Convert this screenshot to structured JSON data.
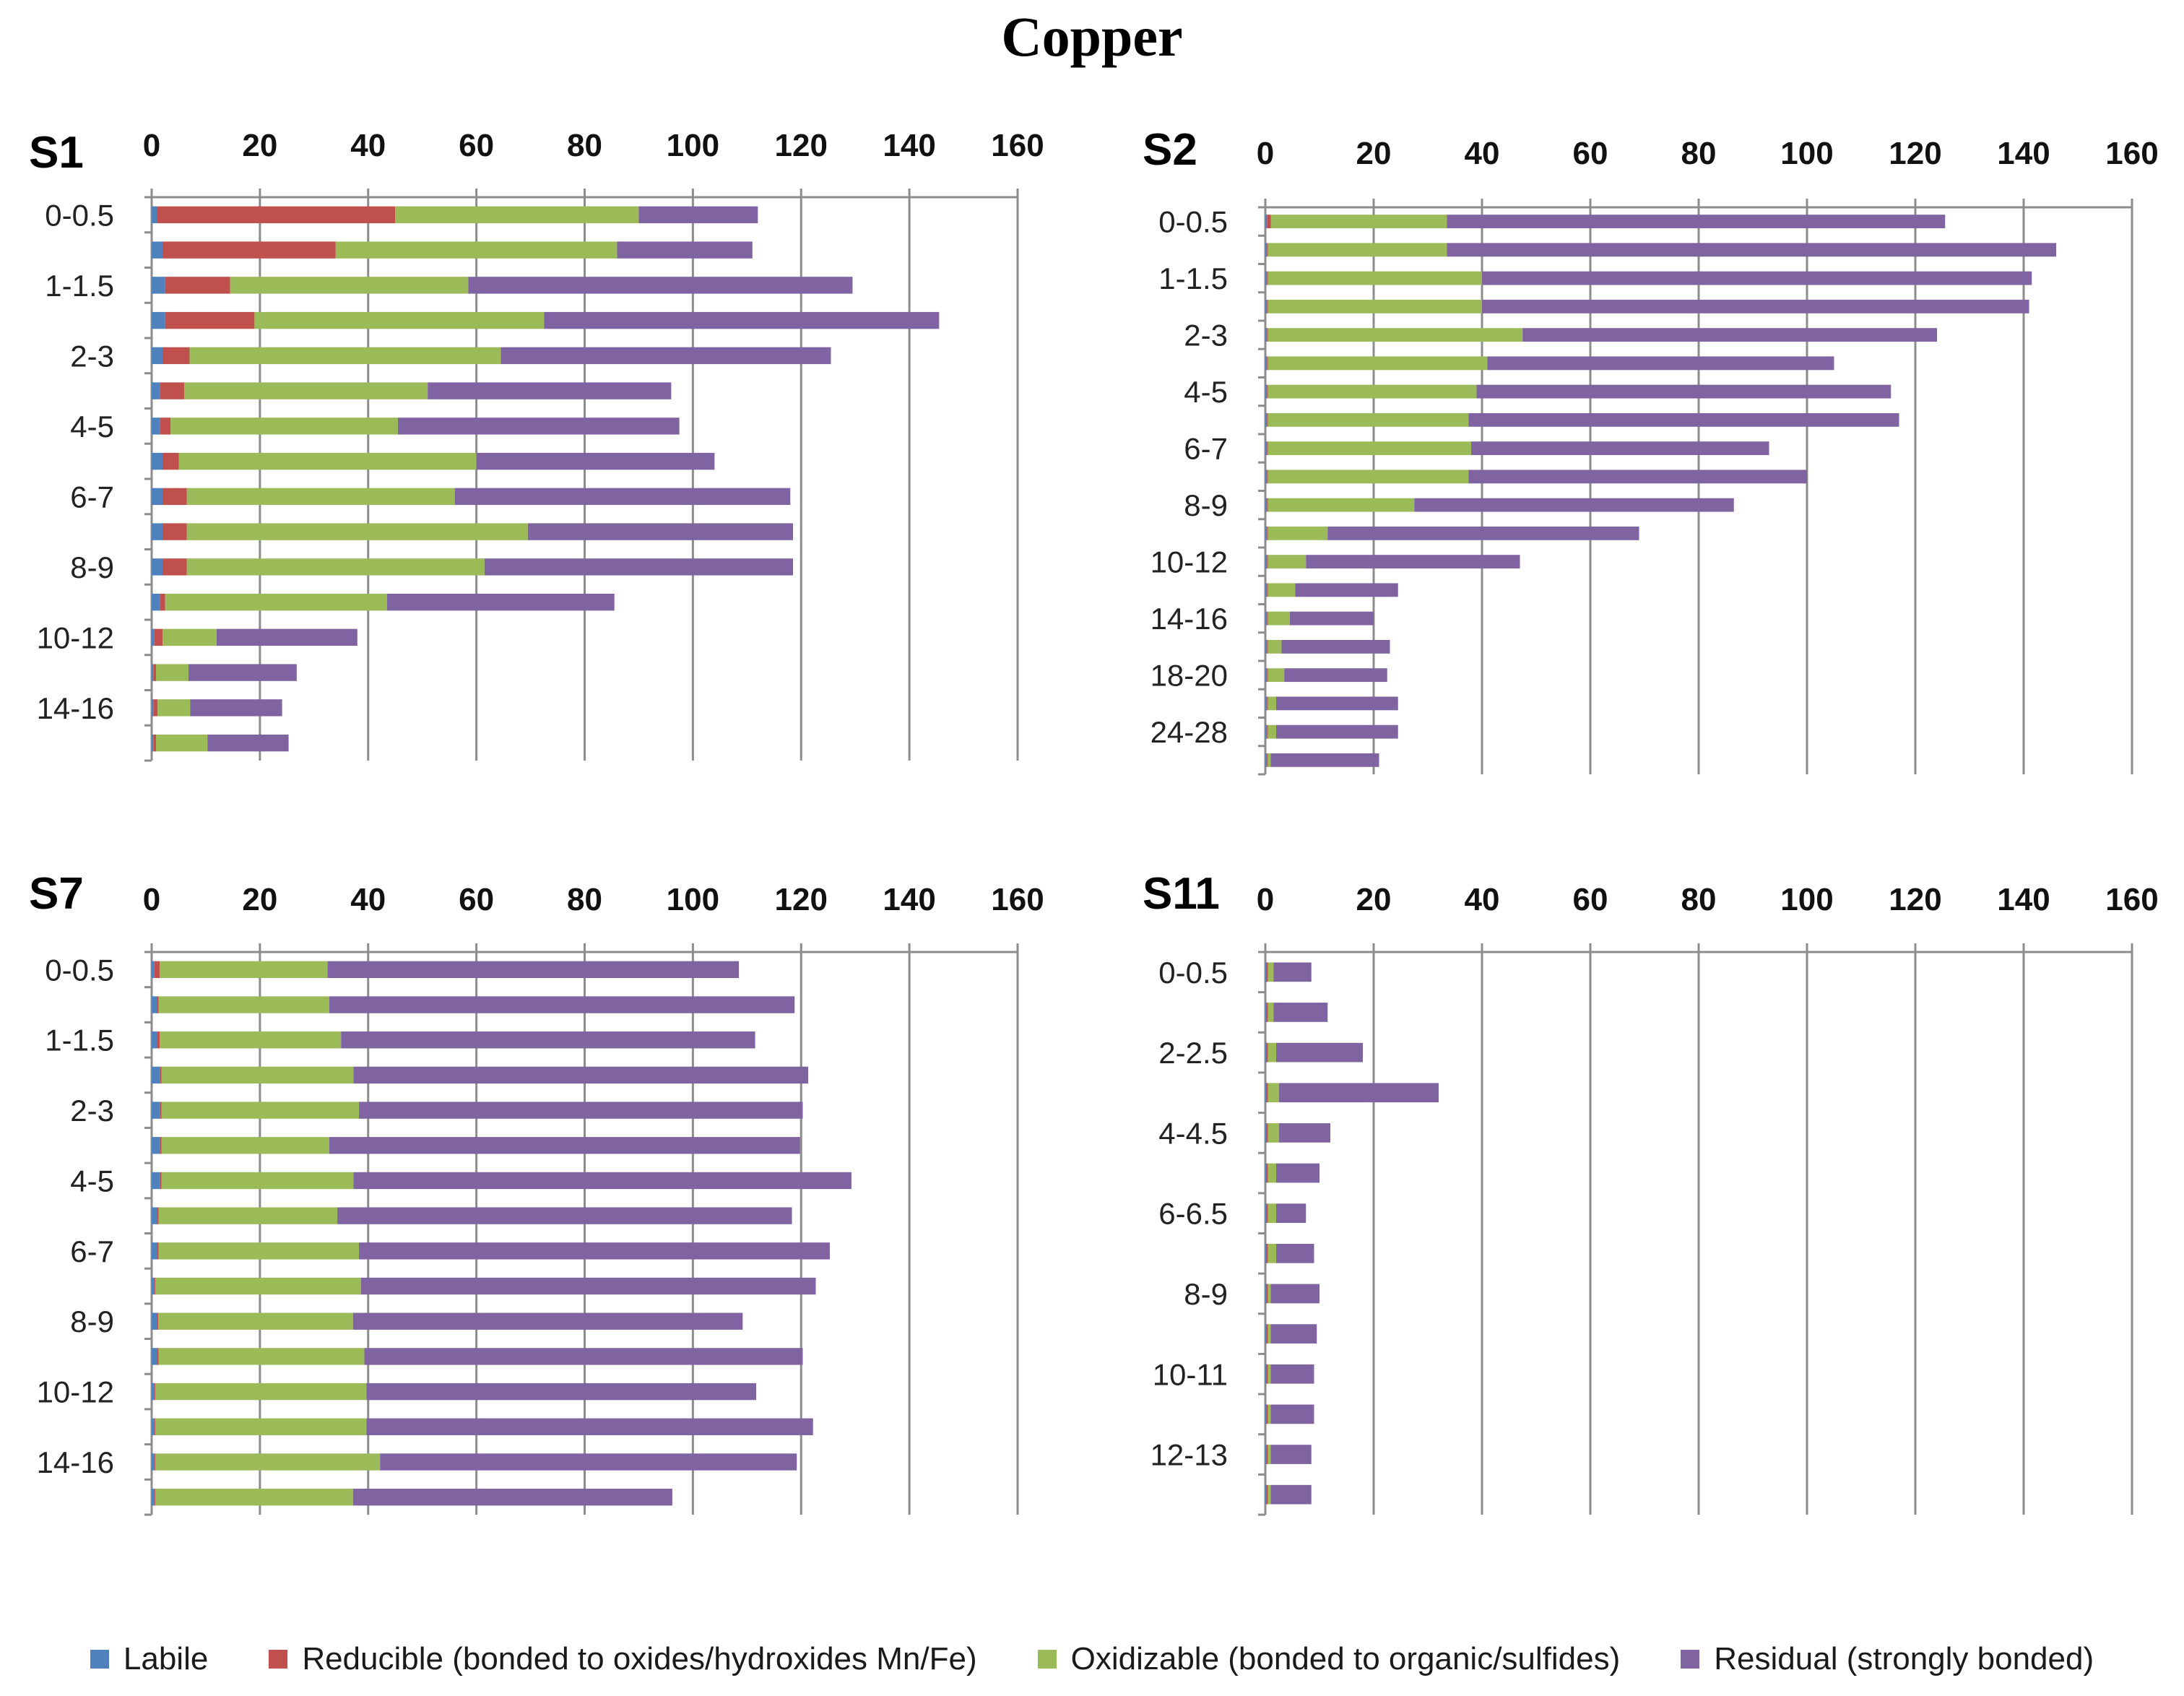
{
  "title": "Copper",
  "legend": [
    {
      "key": "labile",
      "label": "Labile",
      "color": "#4F81BD"
    },
    {
      "key": "reducible",
      "label": "Reducible (bonded to oxides/hydroxides Mn/Fe)",
      "color": "#C0504D"
    },
    {
      "key": "oxidizable",
      "label": "Oxidizable (bonded to organic/sulfides)",
      "color": "#9BBB59"
    },
    {
      "key": "residual",
      "label": "Residual (strongly bonded)",
      "color": "#8064A2"
    }
  ],
  "chart_data": [
    {
      "type": "bar",
      "orientation": "horizontal",
      "stacked": true,
      "title": "S1",
      "xlim": [
        0,
        160
      ],
      "xticks": [
        0,
        20,
        40,
        60,
        80,
        100,
        120,
        140,
        160
      ],
      "depth_labels": [
        "0-0.5",
        "",
        "1-1.5",
        "",
        "2-3",
        "",
        "4-5",
        "",
        "6-7",
        "",
        "8-9",
        "",
        "10-12",
        "",
        "14-16",
        ""
      ],
      "series": [
        {
          "name": "Labile",
          "values": [
            1,
            2,
            2.5,
            2.5,
            2,
            1.5,
            1.5,
            2,
            2,
            2,
            2,
            1.5,
            0.5,
            0.3,
            0.3,
            0.3
          ]
        },
        {
          "name": "Reducible (bonded to oxides/hydroxides Mn/Fe)",
          "values": [
            44,
            32,
            12,
            16.5,
            5,
            4.5,
            2,
            3,
            4.5,
            4.5,
            4.5,
            1,
            1.5,
            0.5,
            0.8,
            0.5
          ]
        },
        {
          "name": "Oxidizable (bonded to organic/sulfides)",
          "values": [
            45,
            52,
            44,
            53.5,
            57.5,
            45,
            42,
            55,
            49.5,
            63,
            55,
            41,
            10,
            6,
            6,
            9.5
          ]
        },
        {
          "name": "Residual (strongly bonded)",
          "values": [
            22,
            25,
            71,
            73,
            61,
            45,
            52,
            44,
            62,
            49,
            57,
            42,
            26,
            20,
            17,
            15
          ]
        }
      ]
    },
    {
      "type": "bar",
      "orientation": "horizontal",
      "stacked": true,
      "title": "S2",
      "xlim": [
        0,
        160
      ],
      "xticks": [
        0,
        20,
        40,
        60,
        80,
        100,
        120,
        140,
        160
      ],
      "depth_labels": [
        "0-0.5",
        "",
        "1-1.5",
        "",
        "2-3",
        "",
        "4-5",
        "",
        "6-7",
        "",
        "8-9",
        "",
        "10-12",
        "",
        "14-16",
        "",
        "18-20",
        "",
        "24-28",
        ""
      ],
      "series": [
        {
          "name": "Labile",
          "values": [
            0.3,
            0.3,
            0.3,
            0.3,
            0.3,
            0.3,
            0.3,
            0.3,
            0.3,
            0.3,
            0.3,
            0.3,
            0.3,
            0.3,
            0.3,
            0.3,
            0.3,
            0.3,
            0.3,
            0.3
          ]
        },
        {
          "name": "Reducible (bonded to oxides/hydroxides Mn/Fe)",
          "values": [
            0.7,
            0.2,
            0.2,
            0.2,
            0.2,
            0.2,
            0.2,
            0.2,
            0.2,
            0.2,
            0.2,
            0.2,
            0.2,
            0.2,
            0.2,
            0.2,
            0.2,
            0.2,
            0.2,
            0.2
          ]
        },
        {
          "name": "Oxidizable (bonded to organic/sulfides)",
          "values": [
            32.5,
            33,
            39.5,
            39.5,
            47,
            40.5,
            38.5,
            37,
            37.5,
            37,
            27,
            11,
            7,
            5,
            4,
            2.5,
            3,
            1.5,
            1.5,
            0.5
          ]
        },
        {
          "name": "Residual (strongly bonded)",
          "values": [
            92,
            112.5,
            101.5,
            101,
            76.5,
            64,
            76.5,
            79.5,
            55,
            62.5,
            59,
            57.5,
            39.5,
            19,
            15.5,
            20,
            19,
            22.5,
            22.5,
            20
          ]
        }
      ]
    },
    {
      "type": "bar",
      "orientation": "horizontal",
      "stacked": true,
      "title": "S7",
      "xlim": [
        0,
        160
      ],
      "xticks": [
        0,
        20,
        40,
        60,
        80,
        100,
        120,
        140,
        160
      ],
      "depth_labels": [
        "0-0.5",
        "",
        "1-1.5",
        "",
        "2-3",
        "",
        "4-5",
        "",
        "6-7",
        "",
        "8-9",
        "",
        "10-12",
        "",
        "14-16",
        ""
      ],
      "series": [
        {
          "name": "Labile",
          "values": [
            0.5,
            1,
            1,
            1.5,
            1.5,
            1.5,
            1.5,
            1,
            1,
            0.5,
            1,
            1,
            0.5,
            0.5,
            0.5,
            0.5
          ]
        },
        {
          "name": "Reducible (bonded to oxides/hydroxides Mn/Fe)",
          "values": [
            1,
            0.3,
            0.5,
            0.3,
            0.3,
            0.3,
            0.3,
            0.3,
            0.3,
            0.2,
            0.2,
            0.3,
            0.2,
            0.2,
            0.2,
            0.2
          ]
        },
        {
          "name": "Oxidizable (bonded to organic/sulfides)",
          "values": [
            31,
            31.5,
            33.5,
            35.5,
            36.5,
            31,
            35.5,
            33,
            37,
            38,
            36,
            38,
            39,
            39,
            41.5,
            36.5
          ]
        },
        {
          "name": "Residual (strongly bonded)",
          "values": [
            76,
            86,
            76.5,
            84,
            82,
            87,
            92,
            84,
            87,
            84,
            72,
            81,
            72,
            82.5,
            77,
            59
          ]
        }
      ]
    },
    {
      "type": "bar",
      "orientation": "horizontal",
      "stacked": true,
      "title": "S11",
      "xlim": [
        0,
        160
      ],
      "xticks": [
        0,
        20,
        40,
        60,
        80,
        100,
        120,
        140,
        160
      ],
      "depth_labels": [
        "0-0.5",
        "",
        "2-2.5",
        "",
        "4-4.5",
        "",
        "6-6.5",
        "",
        "8-9",
        "",
        "10-11",
        "",
        "12-13",
        ""
      ],
      "series": [
        {
          "name": "Labile",
          "values": [
            0.2,
            0.2,
            0.2,
            0.2,
            0.2,
            0.2,
            0.2,
            0.2,
            0.2,
            0.2,
            0.2,
            0.2,
            0.2,
            0.2
          ]
        },
        {
          "name": "Reducible (bonded to oxides/hydroxides Mn/Fe)",
          "values": [
            0.3,
            0.3,
            0.3,
            0.3,
            0.3,
            0.3,
            0.3,
            0.3,
            0.3,
            0.3,
            0.3,
            0.3,
            0.3,
            0.3
          ]
        },
        {
          "name": "Oxidizable (bonded to organic/sulfides)",
          "values": [
            1,
            1,
            1.5,
            2,
            2,
            1.5,
            1.5,
            1.5,
            0.5,
            0.5,
            0.5,
            0.5,
            0.5,
            0.5
          ]
        },
        {
          "name": "Residual (strongly bonded)",
          "values": [
            7,
            10,
            16,
            29.5,
            9.5,
            8,
            5.5,
            7,
            9,
            8.5,
            8,
            8,
            7.5,
            7.5
          ]
        }
      ]
    }
  ]
}
